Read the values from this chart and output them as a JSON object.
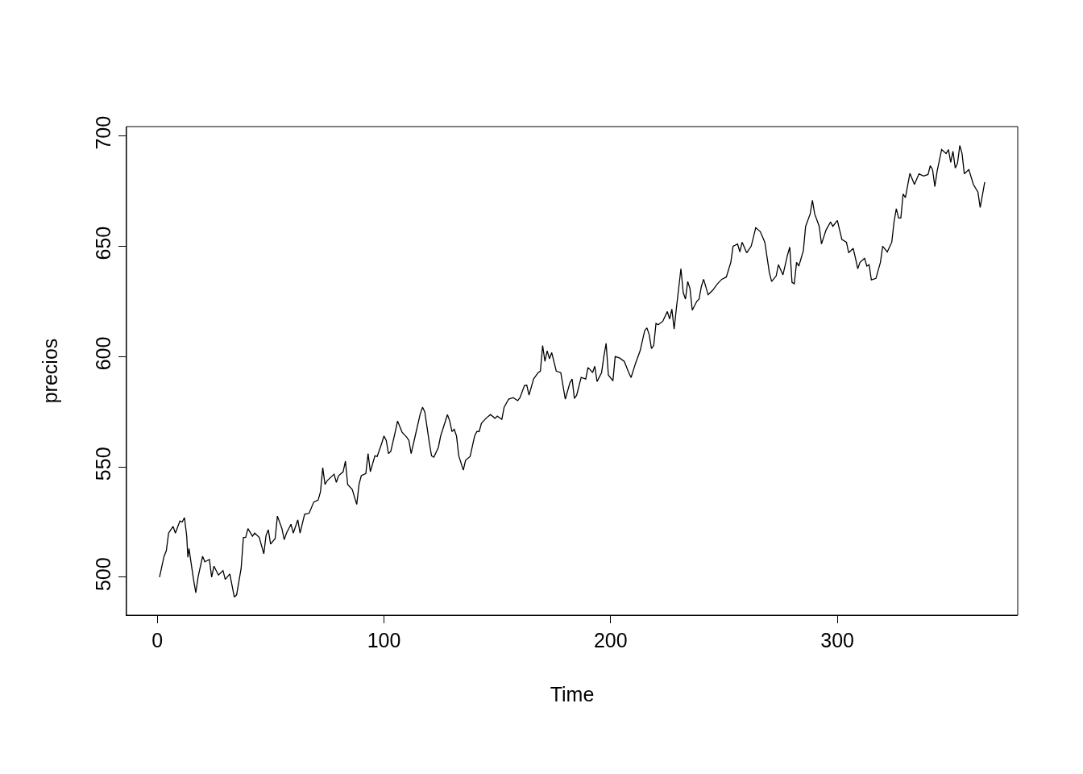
{
  "chart_data": {
    "type": "line",
    "xlabel": "Time",
    "ylabel": "precios",
    "xlim": [
      -13.56,
      379.56
    ],
    "ylim": [
      482.8,
      704.2
    ],
    "xticks": [
      0,
      100,
      200,
      300
    ],
    "yticks": [
      500,
      550,
      600,
      650,
      700
    ],
    "marker": "none",
    "line_style": "solid",
    "series": [
      {
        "color": "#000000",
        "x": [
          1,
          3,
          4,
          5,
          7,
          8,
          10,
          11,
          12,
          13,
          13.5,
          14,
          16,
          17,
          18,
          20,
          21,
          23,
          24,
          25,
          27,
          29,
          30,
          32,
          34,
          35,
          37,
          38,
          39,
          40,
          42,
          43,
          45,
          47,
          48,
          49,
          50,
          52,
          53,
          55,
          56,
          57,
          59,
          60,
          62,
          63,
          65,
          67,
          69,
          71,
          72,
          73,
          74,
          75,
          78,
          79,
          80,
          82,
          83,
          84,
          86,
          88,
          89,
          90,
          92,
          93,
          94,
          96,
          97,
          99,
          100,
          101,
          102,
          103,
          105,
          106,
          108,
          110,
          111,
          112,
          114,
          116,
          117,
          118,
          120,
          121,
          122,
          124,
          125,
          127,
          128,
          129,
          130,
          131,
          132,
          133,
          135,
          136,
          138,
          140,
          141,
          142,
          143,
          145,
          147,
          149,
          150,
          152,
          153,
          155,
          157,
          159,
          160,
          162,
          163,
          164,
          166,
          168,
          169,
          170,
          171,
          172,
          173,
          174,
          176,
          178,
          180,
          182,
          183,
          184,
          185,
          187,
          189,
          190,
          191,
          192,
          193,
          194,
          196,
          197,
          198,
          199,
          201,
          202,
          204,
          206,
          208,
          209,
          211,
          213,
          215,
          216,
          217,
          218,
          219,
          220,
          221,
          223,
          225,
          226,
          227,
          228,
          229,
          231,
          232,
          233,
          234,
          235,
          236,
          238,
          239,
          240,
          241,
          243,
          245,
          247,
          249,
          251,
          253,
          254,
          256,
          257,
          258,
          260,
          262,
          264,
          266,
          268,
          270,
          271,
          273,
          274,
          276,
          278,
          279,
          280,
          281,
          282,
          283,
          285,
          286,
          288,
          289,
          290,
          292,
          293,
          295,
          297,
          298,
          300,
          301,
          302,
          304,
          305,
          307,
          308,
          309,
          310,
          312,
          313,
          314,
          315,
          317,
          319,
          320,
          322,
          324,
          325,
          326,
          327,
          328,
          329,
          330,
          332,
          334,
          336,
          338,
          340,
          341,
          342,
          343,
          344,
          346,
          348,
          349,
          350,
          351,
          352,
          353,
          354,
          355,
          356,
          358,
          360,
          362,
          363,
          365
        ],
        "values": [
          500,
          509.5,
          512,
          520,
          523,
          520,
          525.5,
          525,
          527,
          518.6,
          509,
          513,
          499,
          493,
          500,
          509.5,
          507,
          508,
          500,
          505,
          501,
          503,
          499,
          501.5,
          491,
          492,
          504,
          518,
          518,
          522,
          518.6,
          520,
          518,
          510.6,
          519,
          521.5,
          515,
          517.5,
          527.7,
          522,
          517,
          520,
          524,
          520,
          526,
          520,
          528.5,
          529,
          534,
          535,
          538.7,
          549.6,
          542,
          543.8,
          546.7,
          543,
          546,
          547.8,
          552.6,
          542,
          539.8,
          533,
          542,
          546,
          547,
          556,
          547.8,
          555,
          554.7,
          560.6,
          564,
          562,
          556,
          557,
          566,
          570.8,
          565.7,
          563.5,
          562,
          556,
          565,
          574,
          577,
          575,
          561,
          555,
          554.4,
          558.8,
          564,
          570.4,
          573.7,
          570.8,
          566,
          567,
          564,
          555,
          548.5,
          553,
          554.7,
          564,
          566,
          566,
          569.7,
          572,
          573.7,
          572,
          573,
          571.5,
          577,
          580.7,
          581.4,
          580,
          581.4,
          586.9,
          587,
          582.5,
          589.8,
          592.7,
          593.4,
          605,
          597.8,
          602.6,
          599,
          601.8,
          593.4,
          592.7,
          580.7,
          588,
          589.8,
          581,
          582.5,
          590.5,
          589.8,
          595,
          594,
          592.7,
          595.6,
          588.7,
          592.7,
          600,
          606,
          591.6,
          589,
          600,
          599.3,
          597.8,
          592.7,
          590.5,
          597,
          602.6,
          611.7,
          613,
          609.9,
          603.6,
          605,
          615,
          614.4,
          616,
          620.4,
          617,
          621.5,
          612.4,
          622,
          639.8,
          629,
          626,
          634,
          630.7,
          621,
          625,
          626,
          631.7,
          635,
          628,
          630,
          632.8,
          635,
          636,
          642.7,
          650,
          651,
          647.4,
          651.8,
          647,
          650,
          658.4,
          656.6,
          651.8,
          638,
          634,
          636.5,
          641.6,
          637,
          646,
          649.6,
          633.6,
          633,
          642.7,
          641,
          648,
          659,
          664.6,
          670.8,
          664.6,
          659,
          651,
          657.3,
          661,
          659,
          661.7,
          657.3,
          653,
          651.8,
          647,
          649,
          644.5,
          639.8,
          642.7,
          644.5,
          641,
          641.6,
          634.7,
          635.4,
          642.7,
          650,
          647.4,
          651.8,
          661,
          667,
          662.8,
          662.8,
          673.7,
          672,
          683,
          678,
          682.8,
          681.8,
          682.5,
          686.5,
          684.7,
          677,
          684,
          693.8,
          692,
          693.8,
          688,
          693,
          685.4,
          687.6,
          695.6,
          692,
          682.8,
          684.7,
          678,
          674.5,
          667.5,
          679
        ]
      }
    ]
  }
}
